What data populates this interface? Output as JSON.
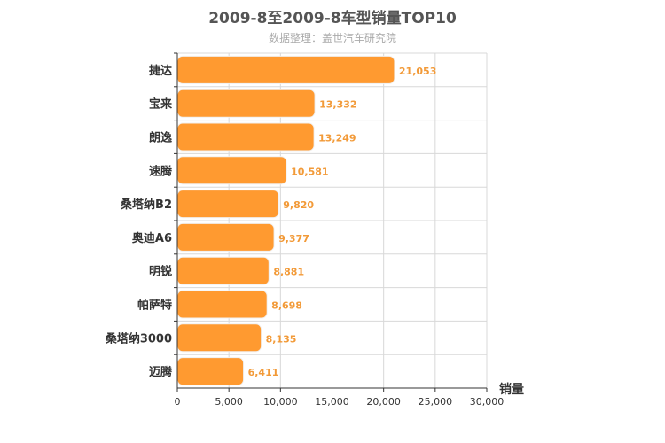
{
  "chart_data": {
    "type": "bar",
    "orientation": "horizontal",
    "title": "2009-8至2009-8车型销量TOP10",
    "subtitle": "数据整理：盖世汽车研究院",
    "xlabel": "销量",
    "ylabel": "",
    "categories": [
      "捷达",
      "宝来",
      "朗逸",
      "速腾",
      "桑塔纳B2",
      "奥迪A6",
      "明锐",
      "帕萨特",
      "桑塔纳3000",
      "迈腾"
    ],
    "values": [
      21053,
      13332,
      13249,
      10581,
      9820,
      9377,
      8881,
      8698,
      8135,
      6411
    ],
    "value_labels": [
      "21,053",
      "13,332",
      "13,249",
      "10,581",
      "9,820",
      "9,377",
      "8,881",
      "8,698",
      "8,135",
      "6,411"
    ],
    "xlim": [
      0,
      30000
    ],
    "xticks": [
      0,
      5000,
      10000,
      15000,
      20000,
      25000,
      30000
    ],
    "xtick_labels": [
      "0",
      "5,000",
      "10,000",
      "15,000",
      "20,000",
      "25,000",
      "30,000"
    ],
    "grid": true,
    "legend": "none",
    "colors": {
      "bar": "#ff9a30",
      "bar_border": "#f0f0f0",
      "data_label": "#f29a38",
      "grid": "#d8d8d8",
      "axis": "#333333"
    }
  }
}
